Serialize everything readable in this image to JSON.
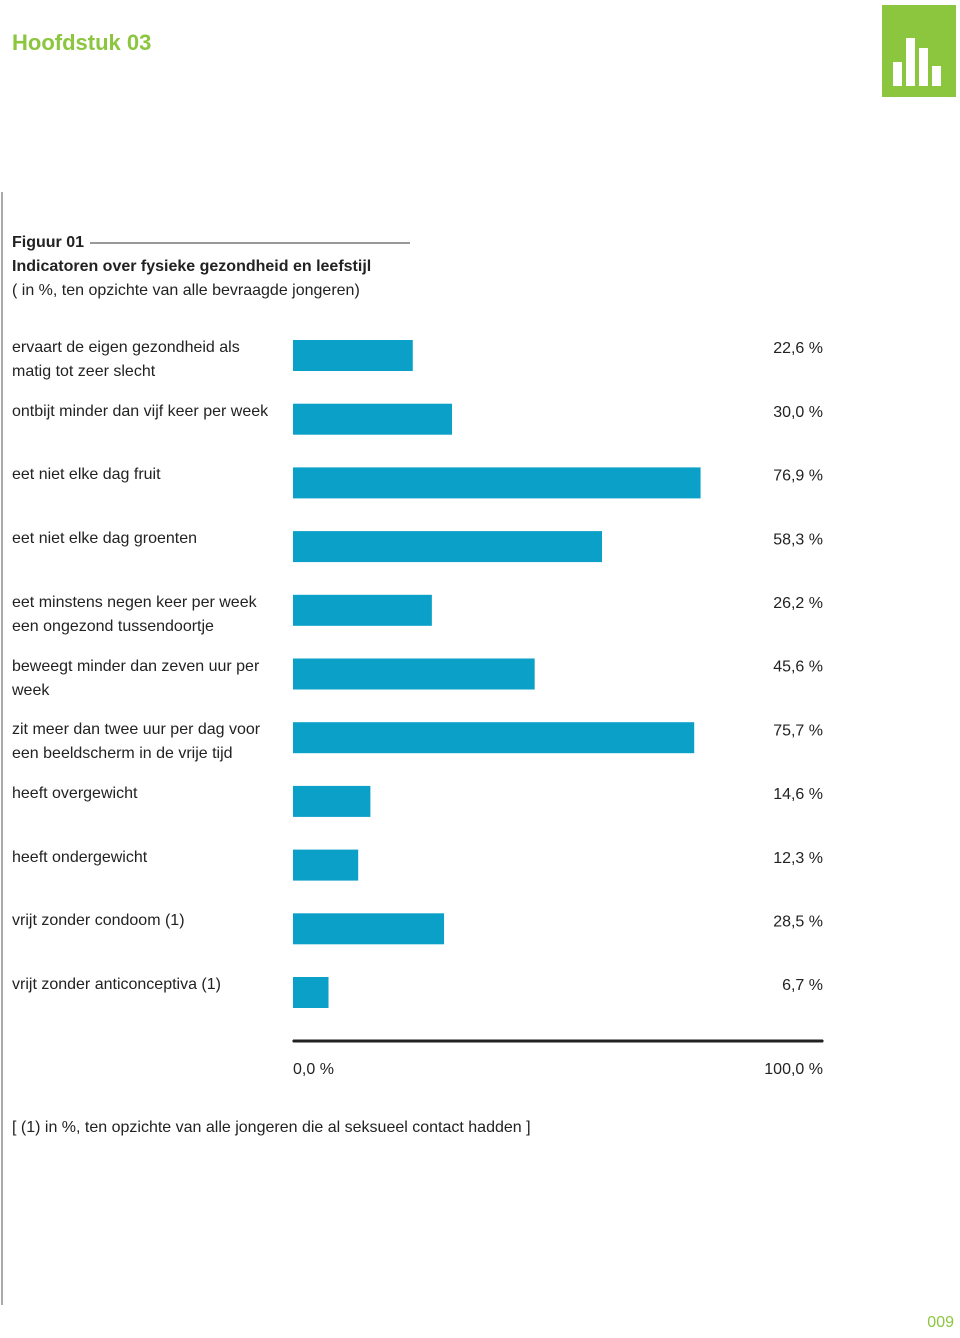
{
  "header": {
    "chapter": "Hoofdstuk 03",
    "page_number": "009"
  },
  "chart_data": {
    "type": "barh",
    "figure_label": "Figuur 01",
    "title": "Indicatoren over fysieke gezondheid en leefstijl",
    "subtitle": "( in %, ten opzichte van alle bevraagde jongeren)",
    "categories": [
      "ervaart de eigen gezondheid als matig tot zeer slecht",
      "ontbijt minder dan vijf keer per week",
      "eet niet elke dag fruit",
      "eet niet elke dag groenten",
      "eet minstens negen keer per week een ongezond tussendoortje",
      "beweegt minder dan zeven uur per week",
      "zit meer dan twee uur per dag voor een beeldscherm in de vrije tijd",
      "heeft overgewicht",
      "heeft ondergewicht",
      "vrijt zonder condoom (1)",
      "vrijt zonder anticonceptiva (1)"
    ],
    "values": [
      22.6,
      30.0,
      76.9,
      58.3,
      26.2,
      45.6,
      75.7,
      14.6,
      12.3,
      28.5,
      6.7
    ],
    "value_labels": [
      "22,6 %",
      "30,0 %",
      "76,9 %",
      "58,3 %",
      "26,2 %",
      "45,6 %",
      "75,7 %",
      "14,6 %",
      "12,3 %",
      "28,5 %",
      "6,7 %"
    ],
    "color": "#0aa0c8",
    "xlim": [
      0,
      100
    ],
    "xticks": [
      {
        "value": 0,
        "label": "0,0 %"
      },
      {
        "value": 100,
        "label": "100,0 %"
      }
    ],
    "footnote": "[ (1) in %, ten opzichte van alle jongeren die al seksueel contact hadden ]"
  }
}
